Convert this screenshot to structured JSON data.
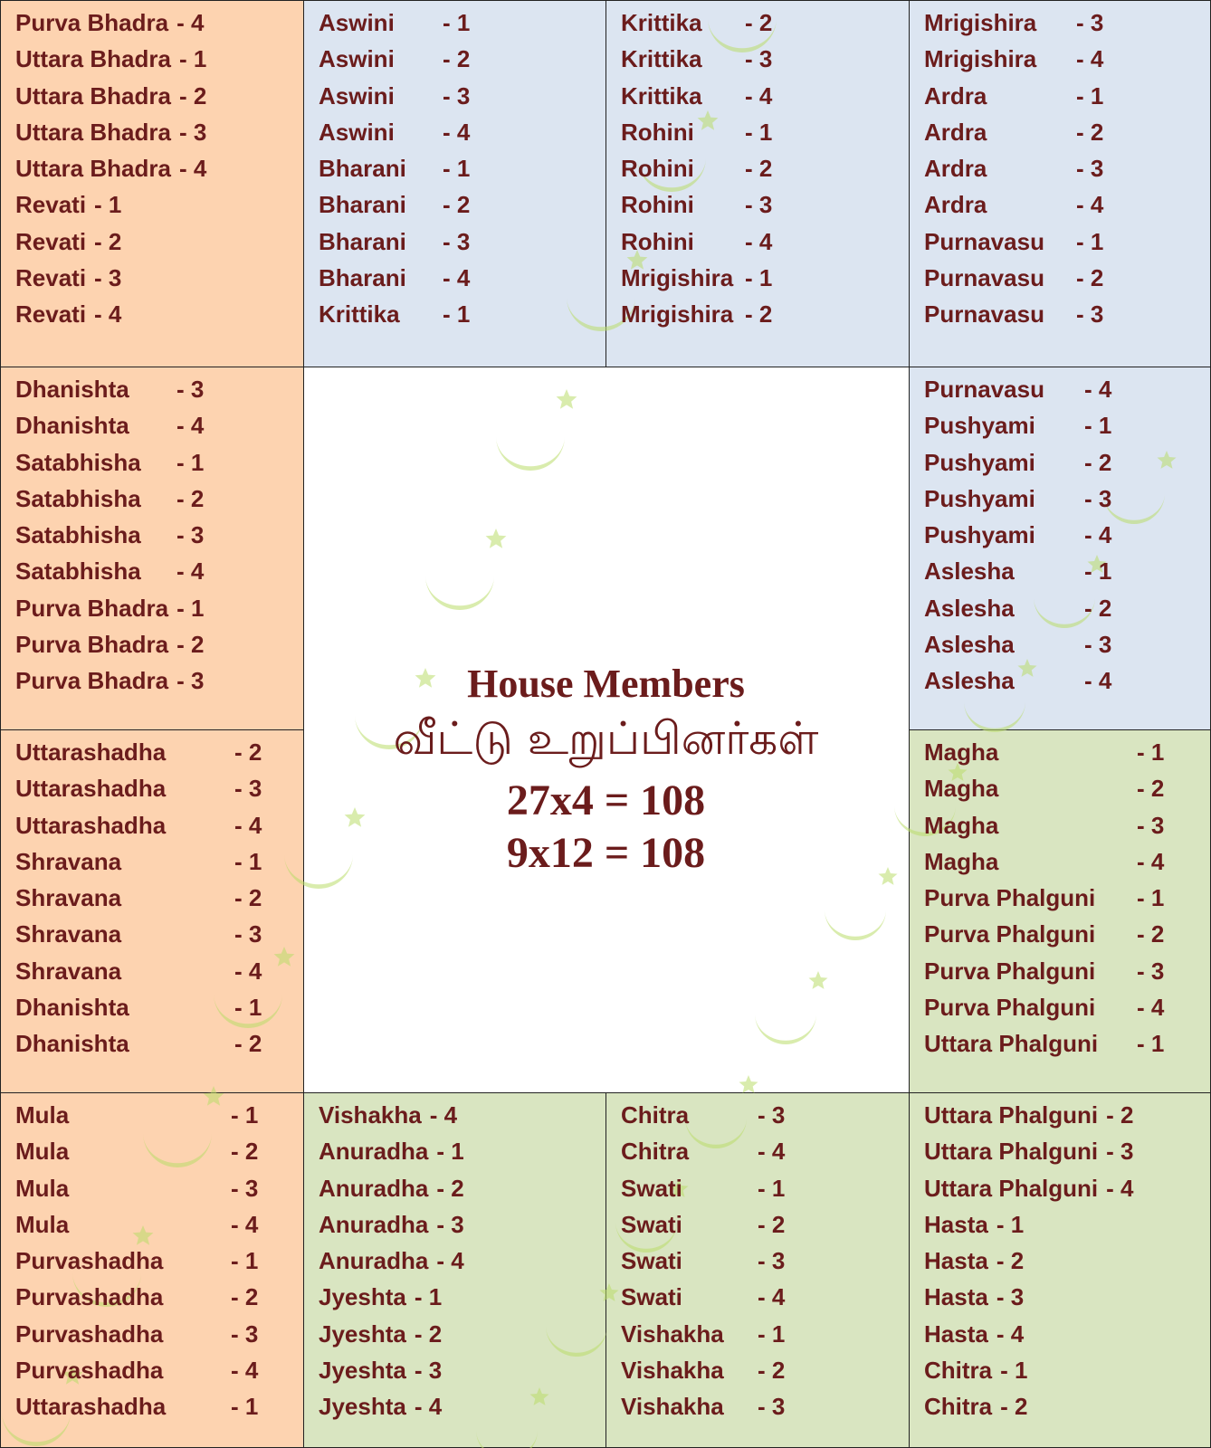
{
  "center": {
    "title": "House Members",
    "subtitle_tamil": "வீட்டு உறுப்பினர்கள்",
    "equation_1": "27x4 = 108",
    "equation_2": "9x12 = 108"
  },
  "colors": {
    "orange": "#fdd3b0",
    "blue": "#dce5f1",
    "green": "#d9e5c1",
    "text": "#6b1c1c",
    "watermark": "#b9dc6a"
  },
  "houses": [
    {
      "id": "pisces",
      "color": "orange",
      "lines": [
        [
          "Purva Bhadra",
          "- 4"
        ],
        [
          "Uttara Bhadra",
          "- 1"
        ],
        [
          "Uttara Bhadra",
          "- 2"
        ],
        [
          "Uttara Bhadra",
          "- 3"
        ],
        [
          "Uttara Bhadra",
          "- 4"
        ],
        [
          "Revati",
          "- 1"
        ],
        [
          "Revati",
          "- 2"
        ],
        [
          "Revati",
          "- 3"
        ],
        [
          "Revati",
          "- 4"
        ]
      ]
    },
    {
      "id": "aries",
      "color": "blue",
      "lines": [
        [
          "Aswini",
          "- 1"
        ],
        [
          "Aswini",
          "- 2"
        ],
        [
          "Aswini",
          "- 3"
        ],
        [
          "Aswini",
          "- 4"
        ],
        [
          "Bharani",
          "- 1"
        ],
        [
          "Bharani",
          "- 2"
        ],
        [
          "Bharani",
          "- 3"
        ],
        [
          "Bharani",
          "- 4"
        ],
        [
          "Krittika",
          "- 1"
        ]
      ]
    },
    {
      "id": "taurus",
      "color": "blue",
      "lines": [
        [
          "Krittika",
          "- 2"
        ],
        [
          "Krittika",
          "- 3"
        ],
        [
          "Krittika",
          "- 4"
        ],
        [
          "Rohini",
          "- 1"
        ],
        [
          "Rohini",
          "- 2"
        ],
        [
          "Rohini",
          "- 3"
        ],
        [
          "Rohini",
          "- 4"
        ],
        [
          "Mrigishira",
          "- 1"
        ],
        [
          "Mrigishira",
          "- 2"
        ]
      ]
    },
    {
      "id": "gemini",
      "color": "blue",
      "lines": [
        [
          "Mrigishira",
          "- 3"
        ],
        [
          "Mrigishira",
          "- 4"
        ],
        [
          "Ardra",
          "- 1"
        ],
        [
          "Ardra",
          "- 2"
        ],
        [
          "Ardra",
          "- 3"
        ],
        [
          "Ardra",
          "- 4"
        ],
        [
          "Purnavasu",
          "- 1"
        ],
        [
          "Purnavasu",
          "- 2"
        ],
        [
          "Purnavasu",
          "- 3"
        ]
      ]
    },
    {
      "id": "aquarius",
      "color": "orange",
      "lines": [
        [
          "Dhanishta",
          "- 3"
        ],
        [
          "Dhanishta",
          "- 4"
        ],
        [
          "Satabhisha",
          "- 1"
        ],
        [
          "Satabhisha",
          "- 2"
        ],
        [
          "Satabhisha",
          "- 3"
        ],
        [
          "Satabhisha",
          "- 4"
        ],
        [
          "Purva Bhadra",
          "- 1"
        ],
        [
          "Purva Bhadra",
          "- 2"
        ],
        [
          "Purva Bhadra",
          "- 3"
        ]
      ]
    },
    {
      "id": "cancer",
      "color": "blue",
      "lines": [
        [
          "Purnavasu",
          "- 4"
        ],
        [
          "Pushyami",
          "- 1"
        ],
        [
          "Pushyami",
          "- 2"
        ],
        [
          "Pushyami",
          "- 3"
        ],
        [
          "Pushyami",
          "- 4"
        ],
        [
          "Aslesha",
          "- 1"
        ],
        [
          "Aslesha",
          "- 2"
        ],
        [
          "Aslesha",
          "- 3"
        ],
        [
          "Aslesha",
          "- 4"
        ]
      ]
    },
    {
      "id": "capricorn",
      "color": "orange",
      "lines": [
        [
          "Uttarashadha",
          "- 2"
        ],
        [
          "Uttarashadha",
          "- 3"
        ],
        [
          "Uttarashadha",
          "- 4"
        ],
        [
          "Shravana",
          "- 1"
        ],
        [
          "Shravana",
          "- 2"
        ],
        [
          "Shravana",
          "- 3"
        ],
        [
          "Shravana",
          "- 4"
        ],
        [
          "Dhanishta",
          "- 1"
        ],
        [
          "Dhanishta",
          "- 2"
        ]
      ]
    },
    {
      "id": "leo",
      "color": "green",
      "lines": [
        [
          "Magha",
          "- 1"
        ],
        [
          "Magha",
          "- 2"
        ],
        [
          "Magha",
          "- 3"
        ],
        [
          "Magha",
          "- 4"
        ],
        [
          "Purva Phalguni",
          "- 1"
        ],
        [
          "Purva Phalguni",
          "- 2"
        ],
        [
          "Purva Phalguni",
          "- 3"
        ],
        [
          "Purva Phalguni",
          "- 4"
        ],
        [
          "Uttara Phalguni",
          "- 1"
        ]
      ]
    },
    {
      "id": "sagittarius",
      "color": "orange",
      "lines": [
        [
          "Mula",
          "- 1"
        ],
        [
          "Mula",
          "- 2"
        ],
        [
          "Mula",
          "- 3"
        ],
        [
          "Mula",
          "- 4"
        ],
        [
          "Purvashadha",
          "- 1"
        ],
        [
          "Purvashadha",
          "- 2"
        ],
        [
          "Purvashadha",
          "- 3"
        ],
        [
          "Purvashadha",
          "- 4"
        ],
        [
          "Uttarashadha",
          "- 1"
        ]
      ]
    },
    {
      "id": "scorpio",
      "color": "green",
      "lines": [
        [
          "Vishakha",
          "- 4"
        ],
        [
          "Anuradha",
          "- 1"
        ],
        [
          "Anuradha",
          "- 2"
        ],
        [
          "Anuradha",
          "- 3"
        ],
        [
          "Anuradha",
          "- 4"
        ],
        [
          "Jyeshta",
          "- 1"
        ],
        [
          "Jyeshta",
          "- 2"
        ],
        [
          "Jyeshta",
          "- 3"
        ],
        [
          "Jyeshta",
          "- 4"
        ]
      ]
    },
    {
      "id": "libra",
      "color": "green",
      "lines": [
        [
          "Chitra",
          "- 3"
        ],
        [
          "Chitra",
          "- 4"
        ],
        [
          "Swati",
          "- 1"
        ],
        [
          "Swati",
          "- 2"
        ],
        [
          "Swati",
          "- 3"
        ],
        [
          "Swati",
          "- 4"
        ],
        [
          "Vishakha",
          "- 1"
        ],
        [
          "Vishakha",
          "- 2"
        ],
        [
          "Vishakha",
          "- 3"
        ]
      ]
    },
    {
      "id": "virgo",
      "color": "green",
      "lines": [
        [
          "Uttara Phalguni",
          "- 2"
        ],
        [
          "Uttara Phalguni",
          "- 3"
        ],
        [
          "Uttara Phalguni",
          "- 4"
        ],
        [
          "Hasta",
          "- 1"
        ],
        [
          "Hasta",
          "- 2"
        ],
        [
          "Hasta",
          "- 3"
        ],
        [
          "Hasta",
          "- 4"
        ],
        [
          "Chitra",
          "- 1"
        ],
        [
          "Chitra",
          "- 2"
        ]
      ]
    }
  ]
}
